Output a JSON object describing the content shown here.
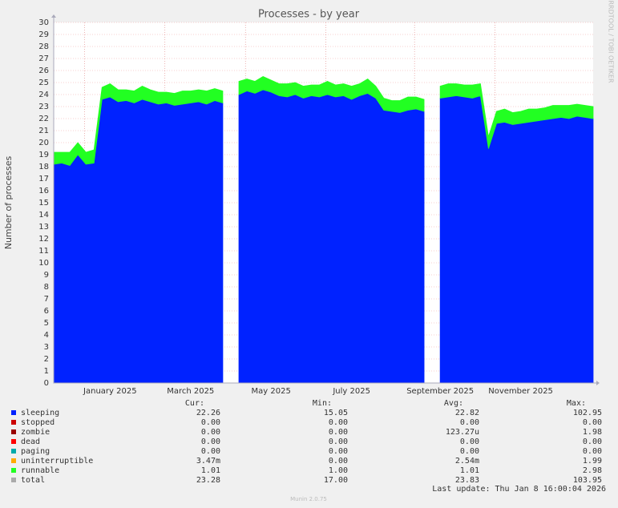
{
  "chart_data": {
    "type": "stacked-area",
    "title": "Processes - by year",
    "y_label": "Number of processes",
    "side_note": "RRDTOOL / TOBI OETIKER",
    "categories": [
      null,
      null,
      null,
      null,
      null,
      null,
      null,
      "January 2025",
      null,
      null,
      null,
      null,
      null,
      null,
      null,
      null,
      null,
      "March 2025",
      null,
      null,
      null,
      null,
      null,
      null,
      null,
      null,
      null,
      "May 2025",
      null,
      null,
      null,
      null,
      null,
      null,
      null,
      null,
      null,
      "July 2025",
      null,
      null,
      null,
      null,
      null,
      null,
      null,
      null,
      null,
      null,
      "September 2025",
      null,
      null,
      null,
      null,
      null,
      null,
      null,
      null,
      null,
      "November 2025",
      null,
      null,
      null,
      null,
      null,
      null,
      null,
      null,
      null
    ],
    "series": [
      {
        "name": "sleeping",
        "color": "#0022ff",
        "values": [
          18.2,
          18.3,
          18.1,
          19.0,
          18.2,
          18.3,
          23.6,
          23.8,
          23.4,
          23.5,
          23.3,
          23.6,
          23.4,
          23.2,
          23.3,
          23.1,
          23.2,
          23.3,
          23.4,
          23.2,
          23.5,
          23.3,
          null,
          24.0,
          24.3,
          24.1,
          24.4,
          24.2,
          23.9,
          23.8,
          24.0,
          23.7,
          23.9,
          23.8,
          24.0,
          23.8,
          23.9,
          23.6,
          23.9,
          24.1,
          23.7,
          22.7,
          22.6,
          22.5,
          22.7,
          22.8,
          22.6,
          null,
          23.7,
          23.8,
          23.9,
          23.8,
          23.7,
          23.9,
          19.5,
          21.6,
          21.7,
          21.5,
          21.6,
          21.7,
          21.8,
          21.9,
          22.0,
          22.1,
          22.0,
          22.2,
          22.1,
          22.0
        ]
      },
      {
        "name": "runnable",
        "color": "#22ff22",
        "values": [
          1.0,
          0.9,
          1.1,
          1.0,
          1.0,
          1.1,
          1.0,
          1.1,
          1.0,
          0.9,
          1.0,
          1.1,
          1.0,
          1.0,
          0.9,
          1.0,
          1.1,
          1.0,
          1.0,
          1.1,
          1.0,
          1.0,
          null,
          1.1,
          1.0,
          1.0,
          1.1,
          1.0,
          1.0,
          1.1,
          1.0,
          1.0,
          0.9,
          1.0,
          1.1,
          1.0,
          1.0,
          1.1,
          1.0,
          1.2,
          1.0,
          1.0,
          0.9,
          1.0,
          1.1,
          1.0,
          1.0,
          null,
          1.0,
          1.1,
          1.0,
          1.0,
          1.1,
          1.0,
          1.0,
          1.0,
          1.1,
          1.0,
          1.0,
          1.1,
          1.0,
          1.0,
          1.1,
          1.0,
          1.1,
          1.0,
          1.0,
          1.0
        ]
      }
    ],
    "ylim": [
      0,
      30
    ],
    "yticks": [
      0,
      1,
      2,
      3,
      4,
      5,
      6,
      7,
      8,
      9,
      10,
      11,
      12,
      13,
      14,
      15,
      16,
      17,
      18,
      19,
      20,
      21,
      22,
      23,
      24,
      25,
      26,
      27,
      28,
      29,
      30
    ],
    "grid": true,
    "legend_table": {
      "headers": [
        "Cur:",
        "Min:",
        "Avg:",
        "Max:"
      ],
      "rows": [
        {
          "name": "sleeping",
          "color": "#0022ff",
          "cells": [
            "22.26",
            "15.05",
            "22.82",
            "102.95"
          ]
        },
        {
          "name": "stopped",
          "color": "#cc0000",
          "cells": [
            "0.00",
            "0.00",
            "0.00",
            "0.00"
          ]
        },
        {
          "name": "zombie",
          "color": "#990000",
          "cells": [
            "0.00",
            "0.00",
            "123.27u",
            "1.98"
          ]
        },
        {
          "name": "dead",
          "color": "#ff0000",
          "cells": [
            "0.00",
            "0.00",
            "0.00",
            "0.00"
          ]
        },
        {
          "name": "paging",
          "color": "#00aaaa",
          "cells": [
            "0.00",
            "0.00",
            "0.00",
            "0.00"
          ]
        },
        {
          "name": "uninterruptible",
          "color": "#ffaa00",
          "cells": [
            "3.47m",
            "0.00",
            "2.54m",
            "1.99"
          ]
        },
        {
          "name": "runnable",
          "color": "#22ff22",
          "cells": [
            "1.01",
            "1.00",
            "1.01",
            "2.98"
          ]
        },
        {
          "name": "total",
          "color": "#aaaaaa",
          "cells": [
            "23.28",
            "17.00",
            "23.83",
            "103.95"
          ]
        }
      ]
    },
    "last_update": "Last update: Thu Jan  8 16:00:04 2026",
    "footer": "Munin 2.0.75"
  }
}
